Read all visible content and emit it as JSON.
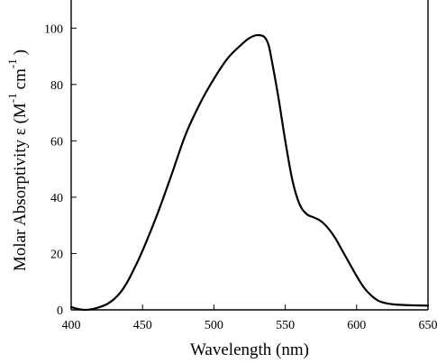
{
  "chart_data": {
    "type": "line",
    "title": "",
    "xlabel": "Wavelength (nm)",
    "ylabel": {
      "prefix": "Molar Absorptivity ε (M",
      "sup1": "-1",
      "mid": "cm",
      "sup2": "-1",
      "suffix": ")"
    },
    "xlim": [
      400,
      650
    ],
    "ylim": [
      0,
      110
    ],
    "x_ticks": [
      400,
      450,
      500,
      550,
      600,
      650
    ],
    "y_ticks": [
      0,
      20,
      40,
      60,
      80,
      100
    ],
    "grid": false,
    "series": [
      {
        "x": [
          400,
          405,
          410,
          415,
          420,
          425,
          430,
          435,
          440,
          445,
          450,
          460,
          470,
          480,
          490,
          500,
          510,
          520,
          525,
          530,
          535,
          538,
          540,
          545,
          550,
          555,
          560,
          565,
          570,
          575,
          580,
          585,
          590,
          595,
          600,
          605,
          610,
          615,
          620,
          625,
          630,
          640,
          650
        ],
        "y": [
          1.0,
          0.3,
          0.0,
          0.3,
          1.0,
          2.0,
          3.8,
          6.5,
          10.5,
          15.5,
          21.0,
          33.5,
          47.5,
          62.0,
          73.0,
          82.0,
          89.5,
          94.5,
          96.5,
          97.5,
          97.0,
          94.5,
          90.0,
          76.0,
          60.0,
          46.0,
          37.5,
          34.0,
          32.8,
          31.5,
          29.0,
          25.5,
          21.0,
          16.5,
          12.0,
          8.0,
          5.2,
          3.3,
          2.4,
          2.0,
          1.8,
          1.6,
          1.5
        ]
      }
    ]
  }
}
